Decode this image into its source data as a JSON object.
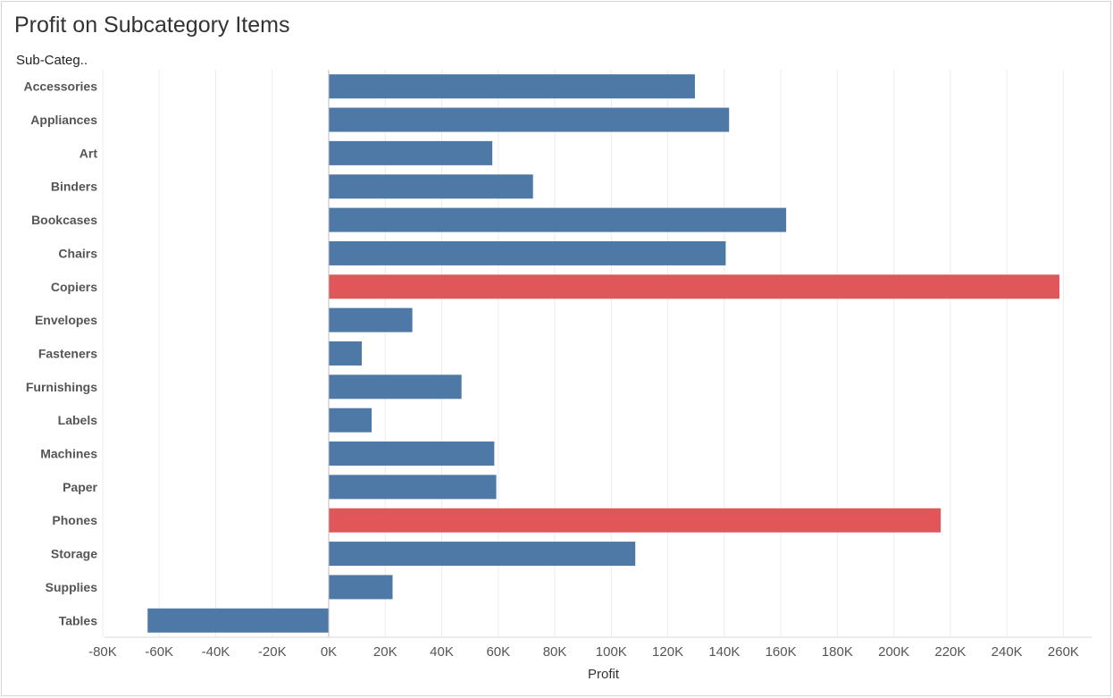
{
  "title": "Profit on Subcategory Items",
  "row_header": "Sub-Categ..",
  "colors": {
    "default_bar": "#4e79a7",
    "highlight_bar": "#e15759",
    "grid": "#ececec",
    "text": "#555555"
  },
  "chart_data": {
    "type": "bar",
    "orientation": "horizontal",
    "title": "Profit on Subcategory Items",
    "ylabel": "Sub-Categ..",
    "xlabel": "Profit",
    "xlim": [
      -80000,
      260000
    ],
    "grid": true,
    "x_ticks": [
      -80000,
      -60000,
      -40000,
      -20000,
      0,
      20000,
      40000,
      60000,
      80000,
      100000,
      120000,
      140000,
      160000,
      180000,
      200000,
      220000,
      240000,
      260000
    ],
    "x_tick_labels": [
      "-80K",
      "-60K",
      "-40K",
      "-20K",
      "0K",
      "20K",
      "40K",
      "60K",
      "80K",
      "100K",
      "120K",
      "140K",
      "160K",
      "180K",
      "200K",
      "220K",
      "240K",
      "260K"
    ],
    "categories": [
      "Accessories",
      "Appliances",
      "Art",
      "Binders",
      "Bookcases",
      "Chairs",
      "Copiers",
      "Envelopes",
      "Fasteners",
      "Furnishings",
      "Labels",
      "Machines",
      "Paper",
      "Phones",
      "Storage",
      "Supplies",
      "Tables"
    ],
    "values": [
      129600,
      141700,
      57900,
      72300,
      161900,
      140500,
      258600,
      29600,
      11700,
      47000,
      15200,
      58600,
      59300,
      216600,
      108500,
      22600,
      -64100
    ],
    "highlighted": [
      false,
      false,
      false,
      false,
      false,
      false,
      true,
      false,
      false,
      false,
      false,
      false,
      false,
      true,
      false,
      false,
      false
    ]
  }
}
